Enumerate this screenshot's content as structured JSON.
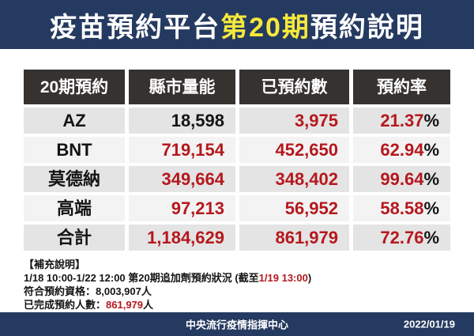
{
  "title": {
    "part1": "疫苗預約平台",
    "highlight": "第20期",
    "part2": "預約說明"
  },
  "table": {
    "headers": [
      "20期預約",
      "縣市量能",
      "已預約數",
      "預約率"
    ],
    "percent_sign": "%",
    "rows": [
      {
        "name": "AZ",
        "capacity": "18,598",
        "reserved": "3,975",
        "rate": "21.37"
      },
      {
        "name": "BNT",
        "capacity": "719,154",
        "reserved": "452,650",
        "rate": "62.94"
      },
      {
        "name": "莫德納",
        "capacity": "349,664",
        "reserved": "348,402",
        "rate": "99.64"
      },
      {
        "name": "高端",
        "capacity": "97,213",
        "reserved": "56,952",
        "rate": "58.58"
      },
      {
        "name": "合計",
        "capacity": "1,184,629",
        "reserved": "861,979",
        "rate": "72.76"
      }
    ]
  },
  "notes": {
    "heading": "【補充說明】",
    "line1_prefix": "1/18 10:00-1/22 12:00 第20期追加劑預約狀況 (截至",
    "line1_highlight": "1/19 13:00",
    "line1_suffix": ")",
    "line2_label": "符合預約資格：",
    "line2_value": "8,003,907",
    "line2_unit": "人",
    "line3_label": "已完成預約人數：",
    "line3_value": "861,979",
    "line3_unit": "人"
  },
  "footer": {
    "org": "中央流行疫情指揮中心",
    "date": "2022/01/19"
  },
  "colors": {
    "navy": "#253a60",
    "title_highlight_yellow": "#f6e93b",
    "number_red": "#b5181d",
    "header_bg": "#363230",
    "row_gray": "#e4e4e4",
    "row_light": "#f3f3f3"
  }
}
